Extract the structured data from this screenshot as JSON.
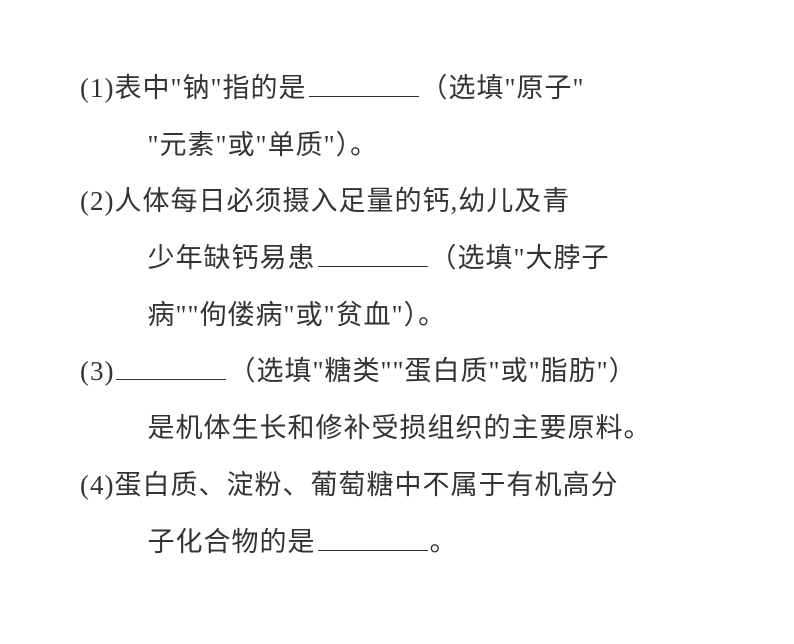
{
  "document": {
    "font_family": "SimSun",
    "font_size": 27,
    "line_height": 2.1,
    "text_color": "#333333",
    "background_color": "#ffffff",
    "blank_width": 110,
    "blank_border_color": "#333333"
  },
  "questions": [
    {
      "number": "(1)",
      "line1": "表中\"钠\"指的是",
      "line1_after_blank": "（选填\"原子\"",
      "line2": "\"元素\"或\"单质\"）。"
    },
    {
      "number": "(2)",
      "line1": "人体每日必须摄入足量的钙,幼儿及青",
      "line2_before": "少年缺钙易患",
      "line2_after": "（选填\"大脖子",
      "line3": "病\"\"佝偻病\"或\"贫血\"）。"
    },
    {
      "number": "(3)",
      "line1_after": "（选填\"糖类\"\"蛋白质\"或\"脂肪\"）",
      "line2": "是机体生长和修补受损组织的主要原料。"
    },
    {
      "number": "(4)",
      "line1": "蛋白质、淀粉、葡萄糖中不属于有机高分",
      "line2_before": "子化合物的是",
      "line2_after": "。"
    }
  ]
}
